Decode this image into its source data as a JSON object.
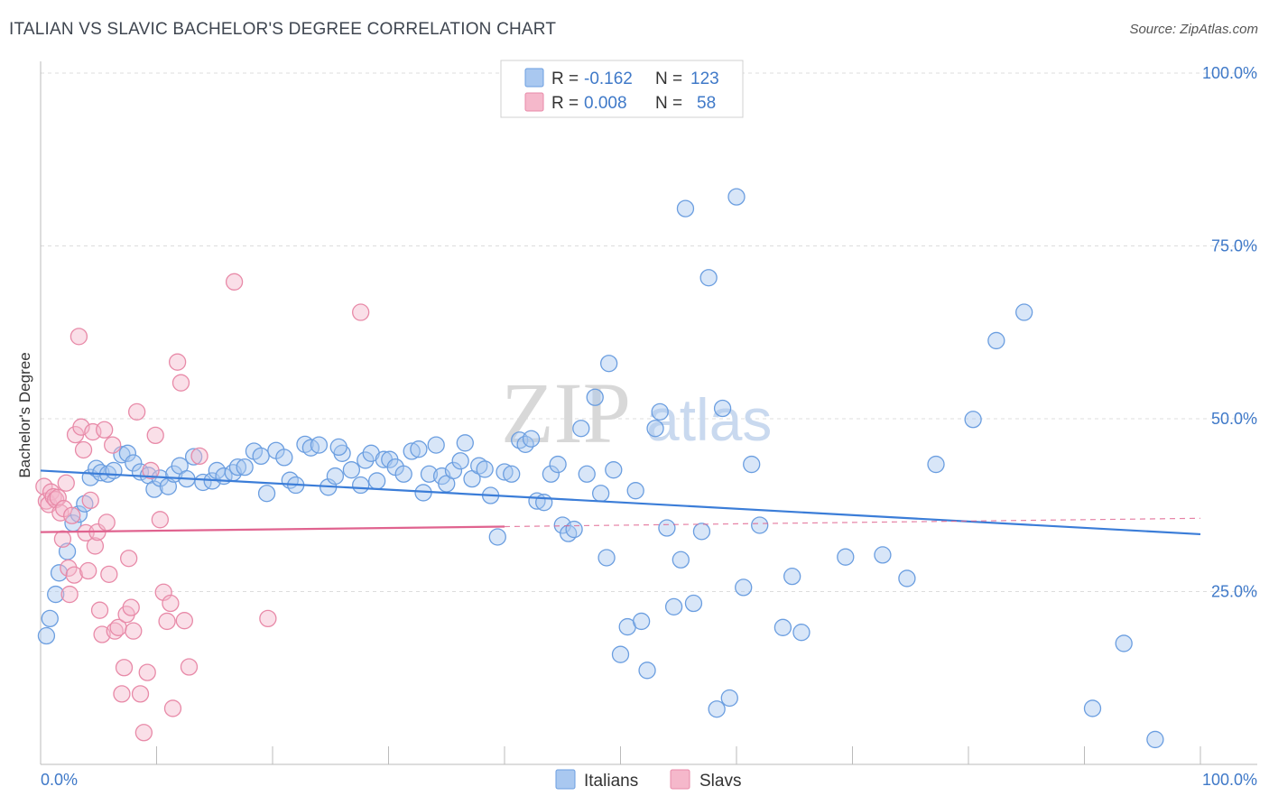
{
  "title": "ITALIAN VS SLAVIC BACHELOR'S DEGREE CORRELATION CHART",
  "source": "Source: ZipAtlas.com",
  "watermark": {
    "part1": "ZIP",
    "part2": "atlas"
  },
  "colors": {
    "italians": "#3b7dd8",
    "italians_fill": "#a9c8f0",
    "slavs": "#e0638f",
    "slavs_fill": "#f5b8cb",
    "axis_label": "#3f79c8"
  },
  "legend": {
    "italians": {
      "r_label": "R = ",
      "r_value": "-0.162",
      "n_label": "N = ",
      "n_value": "123"
    },
    "slavs": {
      "r_label": "R = ",
      "r_value": "0.008",
      "n_label": "N = ",
      "n_value": "58"
    }
  },
  "bottom_legend": [
    "Italians",
    "Slavs"
  ],
  "chart_data": {
    "type": "scatter",
    "title": "ITALIAN VS SLAVIC BACHELOR'S DEGREE CORRELATION CHART",
    "xlabel": "",
    "ylabel": "Bachelor's Degree",
    "xlim": [
      0,
      100
    ],
    "ylim": [
      0,
      100
    ],
    "x_tick_labels": [
      "0.0%",
      "100.0%"
    ],
    "y_tick_labels": [
      "25.0%",
      "50.0%",
      "75.0%",
      "100.0%"
    ],
    "y_ticks": [
      25,
      50,
      75,
      100
    ],
    "grid": true,
    "legend_position": "top-center",
    "series": [
      {
        "name": "Italians",
        "trend": {
          "x": [
            0,
            100
          ],
          "y": [
            42.5,
            33.3
          ]
        },
        "points": [
          [
            0.5,
            18.6
          ],
          [
            0.8,
            21.1
          ],
          [
            1.3,
            24.6
          ],
          [
            1.6,
            27.7
          ],
          [
            2.3,
            30.8
          ],
          [
            2.8,
            34.9
          ],
          [
            3.3,
            36.2
          ],
          [
            3.8,
            37.7
          ],
          [
            4.3,
            41.5
          ],
          [
            4.8,
            42.8
          ],
          [
            5.2,
            42.2
          ],
          [
            5.8,
            42.0
          ],
          [
            6.3,
            42.5
          ],
          [
            7.0,
            44.8
          ],
          [
            7.5,
            45.0
          ],
          [
            8.0,
            43.6
          ],
          [
            8.6,
            42.3
          ],
          [
            9.3,
            41.8
          ],
          [
            9.8,
            39.8
          ],
          [
            10.3,
            41.4
          ],
          [
            11.0,
            40.2
          ],
          [
            11.5,
            42.0
          ],
          [
            12.0,
            43.2
          ],
          [
            12.6,
            41.3
          ],
          [
            13.2,
            44.5
          ],
          [
            14.0,
            40.8
          ],
          [
            14.8,
            41.0
          ],
          [
            15.2,
            42.5
          ],
          [
            15.8,
            41.7
          ],
          [
            16.6,
            42.2
          ],
          [
            17.0,
            43.0
          ],
          [
            17.6,
            43.0
          ],
          [
            18.4,
            45.3
          ],
          [
            19.0,
            44.6
          ],
          [
            19.5,
            39.2
          ],
          [
            20.3,
            45.4
          ],
          [
            21.0,
            44.4
          ],
          [
            21.5,
            41.1
          ],
          [
            22.0,
            40.4
          ],
          [
            22.8,
            46.3
          ],
          [
            23.3,
            45.8
          ],
          [
            24.0,
            46.2
          ],
          [
            24.8,
            40.1
          ],
          [
            25.4,
            41.7
          ],
          [
            26.0,
            45.0
          ],
          [
            26.8,
            42.6
          ],
          [
            27.6,
            40.4
          ],
          [
            28.0,
            44.0
          ],
          [
            28.5,
            45.0
          ],
          [
            29.0,
            41.0
          ],
          [
            29.6,
            44.1
          ],
          [
            30.1,
            44.1
          ],
          [
            30.6,
            43.0
          ],
          [
            31.3,
            42.0
          ],
          [
            32.0,
            45.3
          ],
          [
            32.6,
            45.6
          ],
          [
            33.0,
            39.3
          ],
          [
            33.5,
            42.0
          ],
          [
            34.1,
            46.2
          ],
          [
            34.6,
            41.7
          ],
          [
            35.0,
            40.6
          ],
          [
            35.6,
            42.5
          ],
          [
            36.2,
            43.9
          ],
          [
            36.6,
            46.5
          ],
          [
            37.2,
            41.3
          ],
          [
            37.8,
            43.2
          ],
          [
            38.3,
            42.7
          ],
          [
            38.8,
            38.9
          ],
          [
            39.4,
            32.9
          ],
          [
            40.0,
            42.3
          ],
          [
            40.6,
            42.0
          ],
          [
            41.3,
            46.9
          ],
          [
            41.8,
            46.3
          ],
          [
            42.3,
            47.1
          ],
          [
            42.8,
            38.1
          ],
          [
            43.4,
            37.9
          ],
          [
            44.0,
            42.0
          ],
          [
            44.6,
            43.4
          ],
          [
            45.0,
            34.6
          ],
          [
            45.5,
            33.4
          ],
          [
            46.0,
            34.0
          ],
          [
            46.6,
            48.6
          ],
          [
            47.1,
            42.0
          ],
          [
            47.8,
            53.1
          ],
          [
            48.3,
            39.2
          ],
          [
            48.8,
            29.9
          ],
          [
            49.4,
            42.6
          ],
          [
            50.0,
            15.9
          ],
          [
            50.6,
            19.9
          ],
          [
            51.3,
            39.6
          ],
          [
            51.8,
            20.7
          ],
          [
            52.3,
            13.6
          ],
          [
            53.0,
            48.6
          ],
          [
            53.4,
            51.0
          ],
          [
            54.0,
            34.2
          ],
          [
            54.6,
            22.8
          ],
          [
            55.2,
            29.6
          ],
          [
            55.6,
            80.4
          ],
          [
            56.3,
            23.3
          ],
          [
            57.0,
            33.7
          ],
          [
            57.6,
            70.4
          ],
          [
            58.3,
            8.0
          ],
          [
            58.8,
            51.5
          ],
          [
            59.4,
            9.6
          ],
          [
            60.0,
            82.1
          ],
          [
            60.6,
            25.6
          ],
          [
            61.3,
            43.4
          ],
          [
            62.0,
            34.6
          ],
          [
            64.0,
            19.8
          ],
          [
            65.6,
            19.1
          ],
          [
            69.4,
            30.0
          ],
          [
            72.6,
            30.3
          ],
          [
            74.7,
            26.9
          ],
          [
            77.2,
            43.4
          ],
          [
            80.4,
            49.9
          ],
          [
            82.4,
            61.3
          ],
          [
            84.8,
            65.4
          ],
          [
            90.7,
            8.1
          ],
          [
            93.4,
            17.5
          ],
          [
            96.1,
            3.6
          ],
          [
            49.0,
            58.0
          ],
          [
            64.8,
            27.2
          ],
          [
            25.7,
            45.9
          ]
        ]
      },
      {
        "name": "Slavs",
        "trend": {
          "x": [
            0,
            40
          ],
          "y": [
            33.6,
            34.4
          ]
        },
        "points": [
          [
            0.3,
            40.2
          ],
          [
            0.5,
            38.1
          ],
          [
            0.7,
            37.6
          ],
          [
            0.9,
            39.4
          ],
          [
            1.1,
            38.7
          ],
          [
            1.3,
            38.3
          ],
          [
            1.5,
            38.6
          ],
          [
            1.7,
            36.4
          ],
          [
            1.9,
            32.6
          ],
          [
            2.0,
            37.0
          ],
          [
            2.2,
            40.7
          ],
          [
            2.4,
            28.4
          ],
          [
            2.5,
            24.6
          ],
          [
            2.7,
            36.0
          ],
          [
            2.9,
            27.4
          ],
          [
            3.0,
            47.7
          ],
          [
            3.3,
            61.9
          ],
          [
            3.5,
            48.8
          ],
          [
            3.7,
            45.5
          ],
          [
            3.9,
            33.5
          ],
          [
            4.1,
            28.0
          ],
          [
            4.3,
            38.2
          ],
          [
            4.5,
            48.1
          ],
          [
            4.7,
            31.6
          ],
          [
            4.9,
            33.6
          ],
          [
            5.1,
            22.3
          ],
          [
            5.3,
            18.8
          ],
          [
            5.5,
            48.4
          ],
          [
            5.7,
            35.0
          ],
          [
            5.9,
            27.5
          ],
          [
            6.2,
            46.2
          ],
          [
            6.4,
            19.3
          ],
          [
            6.7,
            19.8
          ],
          [
            7.0,
            10.2
          ],
          [
            7.2,
            14.0
          ],
          [
            7.4,
            21.7
          ],
          [
            7.6,
            29.8
          ],
          [
            7.8,
            22.7
          ],
          [
            8.0,
            19.3
          ],
          [
            8.3,
            51.0
          ],
          [
            8.6,
            10.2
          ],
          [
            8.9,
            4.6
          ],
          [
            9.2,
            13.3
          ],
          [
            9.5,
            42.5
          ],
          [
            9.9,
            47.6
          ],
          [
            10.3,
            35.4
          ],
          [
            10.6,
            24.9
          ],
          [
            10.9,
            20.7
          ],
          [
            11.2,
            23.3
          ],
          [
            11.4,
            8.1
          ],
          [
            11.8,
            58.2
          ],
          [
            12.1,
            55.2
          ],
          [
            12.4,
            20.8
          ],
          [
            12.8,
            14.1
          ],
          [
            13.7,
            44.6
          ],
          [
            16.7,
            69.8
          ],
          [
            19.6,
            21.1
          ],
          [
            27.6,
            65.4
          ]
        ]
      }
    ]
  }
}
